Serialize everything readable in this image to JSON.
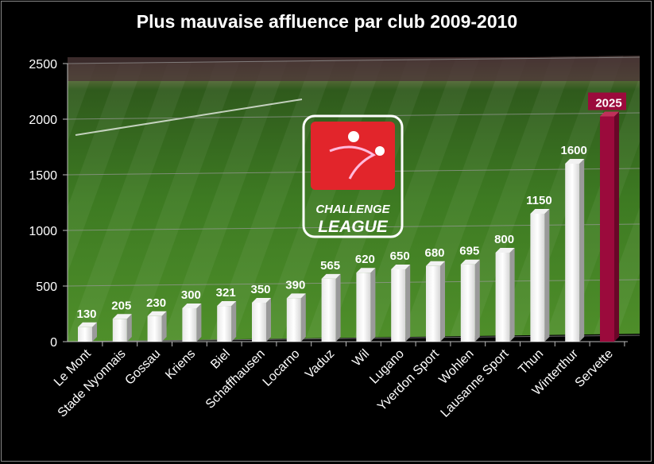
{
  "chart_data": {
    "type": "bar",
    "title": "Plus mauvaise  affluence par club 2009-2010",
    "xlabel": "",
    "ylabel": "",
    "ylim": [
      0,
      2500
    ],
    "yticks": [
      0,
      500,
      1000,
      1500,
      2000,
      2500
    ],
    "grid": true,
    "categories": [
      "Le Mont",
      "Stade Nyonnais",
      "Gossau",
      "Kriens",
      "Biel",
      "Schaffhausen",
      "Locarno",
      "Vaduz",
      "Wil",
      "Lugano",
      "Yverdon Sport",
      "Wohlen",
      "Lausanne Sport",
      "Thun",
      "Winterthur",
      "Servette"
    ],
    "values": [
      130,
      205,
      230,
      300,
      321,
      350,
      390,
      565,
      620,
      650,
      680,
      695,
      800,
      1150,
      1600,
      2025
    ],
    "highlight": {
      "category": "Servette",
      "color": "#9b0a3c"
    },
    "bar_color": "#ffffff"
  },
  "logo": {
    "line1": "CHALLENGE",
    "line2": "LEAGUE"
  }
}
